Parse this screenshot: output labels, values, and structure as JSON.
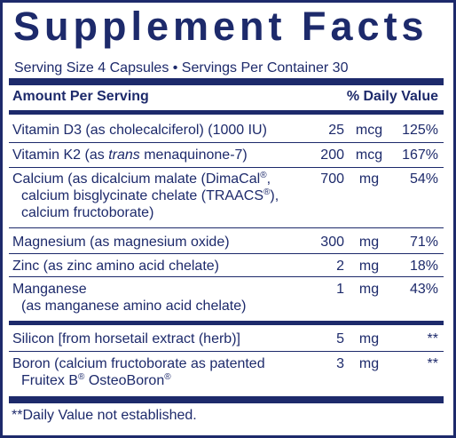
{
  "title": "Supplement Facts",
  "serving_line": "Serving Size 4 Capsules • Servings Per Container 30",
  "header": {
    "amount": "Amount Per Serving",
    "daily_value": "% Daily Value"
  },
  "rows": [
    {
      "name1": "Vitamin D3 (as cholecalciferol) (1000 IU)",
      "amount": "25",
      "unit": "mcg",
      "dv": "125%"
    },
    {
      "name_pre": "Vitamin K2 (as ",
      "name_italic": "trans",
      "name_post": " menaquinone-7)",
      "amount": "200",
      "unit": "mcg",
      "dv": "167%"
    },
    {
      "name1_pre": "Calcium (as dicalcium malate (DimaCal",
      "reg": "®",
      "name1_post": ",",
      "name2_pre": "calcium bisglycinate chelate (TRAACS",
      "name2_post": "),",
      "name3": "calcium fructoborate)",
      "amount": "700",
      "unit": "mg",
      "dv": "54%"
    },
    {
      "name1": "Magnesium (as magnesium oxide)",
      "amount": "300",
      "unit": "mg",
      "dv": "71%"
    },
    {
      "name1": "Zinc (as zinc amino acid chelate)",
      "amount": "2",
      "unit": "mg",
      "dv": "18%"
    },
    {
      "name1": "Manganese",
      "name2": "(as manganese amino acid chelate)",
      "amount": "1",
      "unit": "mg",
      "dv": "43%"
    },
    {
      "name1": "Silicon [from horsetail extract (herb)]",
      "amount": "5",
      "unit": "mg",
      "dv": "**"
    },
    {
      "name1": "Boron (calcium fructoborate as patented",
      "name2_pre": "Fruitex B",
      "name2_mid": " OsteoBoron",
      "amount": "3",
      "unit": "mg",
      "dv": "**"
    }
  ],
  "footnote": "**Daily Value not established.",
  "colors": {
    "ink": "#1d2a6b",
    "background": "#ffffff"
  }
}
